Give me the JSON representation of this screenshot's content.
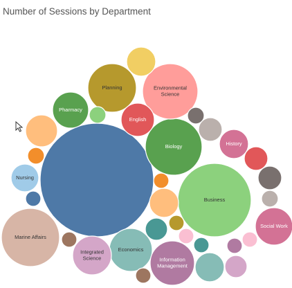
{
  "chart_data": {
    "type": "bubble",
    "title": "Number of Sessions by Department",
    "bubbles": [
      {
        "label": "",
        "color": "#4e79a7",
        "text_color": "#ffffff"
      },
      {
        "label": "Business",
        "color": "#8cd17d",
        "text_color": "#333333"
      },
      {
        "label": "Marine Affairs",
        "color": "#d7b5a6",
        "text_color": "#333333"
      },
      {
        "label": "Biology",
        "color": "#59a14f",
        "text_color": "#ffffff"
      },
      {
        "label": "Environmental Science",
        "color": "#ff9d9a",
        "text_color": "#333333"
      },
      {
        "label": "Planning",
        "color": "#b6992d",
        "text_color": "#333333"
      },
      {
        "label": "Economics",
        "color": "#86bcb6",
        "text_color": "#333333"
      },
      {
        "label": "Information Management",
        "color": "#b07aa1",
        "text_color": "#ffffff"
      },
      {
        "label": "Integrated Science",
        "color": "#d4a6c8",
        "text_color": "#333333"
      },
      {
        "label": "Social Work",
        "color": "#d37295",
        "text_color": "#ffffff"
      },
      {
        "label": "Pharmacy",
        "color": "#59a14f",
        "text_color": "#ffffff"
      },
      {
        "label": "English",
        "color": "#e15759",
        "text_color": "#ffffff"
      },
      {
        "label": "History",
        "color": "#d37295",
        "text_color": "#ffffff"
      },
      {
        "label": "Nursing",
        "color": "#a0cbe8",
        "text_color": "#333333"
      },
      {
        "label": "",
        "color": "#f1ce63"
      },
      {
        "label": "",
        "color": "#ffbe7d"
      },
      {
        "label": "",
        "color": "#ffbe7d"
      },
      {
        "label": "",
        "color": "#86bcb6"
      },
      {
        "label": "",
        "color": "#79706e"
      },
      {
        "label": "",
        "color": "#e15759"
      },
      {
        "label": "",
        "color": "#499894"
      },
      {
        "label": "",
        "color": "#bab0ac"
      },
      {
        "label": "",
        "color": "#d4a6c8"
      },
      {
        "label": "",
        "color": "#bab0ac"
      },
      {
        "label": "",
        "color": "#8cd17d"
      },
      {
        "label": "",
        "color": "#79706e"
      },
      {
        "label": "",
        "color": "#f28e2b"
      },
      {
        "label": "",
        "color": "#f28e2b"
      },
      {
        "label": "",
        "color": "#4e79a7"
      },
      {
        "label": "",
        "color": "#9d7660"
      },
      {
        "label": "",
        "color": "#b6992d"
      },
      {
        "label": "",
        "color": "#fabfd2"
      },
      {
        "label": "",
        "color": "#499894"
      },
      {
        "label": "",
        "color": "#b07aa1"
      },
      {
        "label": "",
        "color": "#fabfd2"
      },
      {
        "label": "",
        "color": "#9d7660"
      }
    ]
  },
  "ui": {
    "cursor_icon": "mouse-pointer-icon"
  }
}
